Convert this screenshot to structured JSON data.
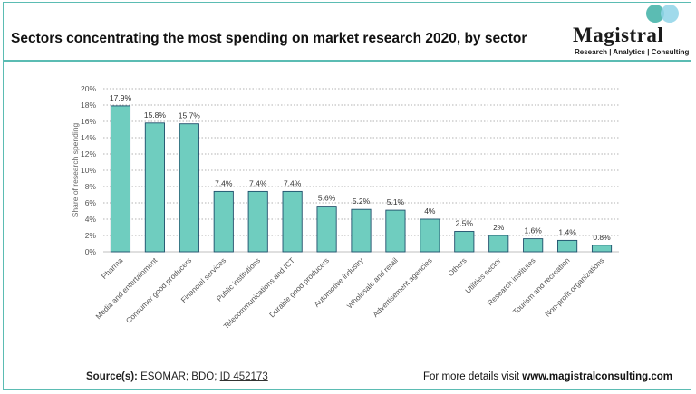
{
  "header": {
    "title": "Sectors concentrating the most spending on market research 2020, by sector"
  },
  "logo": {
    "name": "Magistral",
    "tagline": "Research | Analytics | Consulting"
  },
  "footer": {
    "source_label": "Source(s):",
    "source_text": "ESOMAR; BDO;",
    "source_id": "ID 452173",
    "more_text": "For more details visit",
    "more_url": "www.magistralconsulting.com"
  },
  "colors": {
    "bar": "#6fcdbf",
    "bar_stroke": "#1f4f6b",
    "accent": "#5bbcb3",
    "logo_dot_1": "#5bbcb3",
    "logo_dot_2": "#8fd3e8"
  },
  "chart_data": {
    "type": "bar",
    "title": "",
    "xlabel": "",
    "ylabel": "Share of research spending",
    "ylim": [
      0,
      20
    ],
    "y_ticks": [
      "0%",
      "2%",
      "4%",
      "6%",
      "8%",
      "10%",
      "12%",
      "14%",
      "16%",
      "18%",
      "20%"
    ],
    "grid": true,
    "categories": [
      "Pharma",
      "Media and entertainment",
      "Consumer good producers",
      "Financial services",
      "Public institutions",
      "Telecommunications and ICT",
      "Durable good producers",
      "Automotive industry",
      "Wholesale and retail",
      "Advertisement agencies",
      "Others",
      "Utilities sector",
      "Research institutes",
      "Tourism and recreation",
      "Non-profit organizations"
    ],
    "values": [
      17.9,
      15.8,
      15.7,
      7.4,
      7.4,
      7.4,
      5.6,
      5.2,
      5.1,
      4,
      2.5,
      2,
      1.6,
      1.4,
      0.8
    ],
    "data_labels": [
      "17.9%",
      "15.8%",
      "15.7%",
      "7.4%",
      "7.4%",
      "7.4%",
      "5.6%",
      "5.2%",
      "5.1%",
      "4%",
      "2.5%",
      "2%",
      "1.6%",
      "1.4%",
      "0.8%"
    ]
  }
}
